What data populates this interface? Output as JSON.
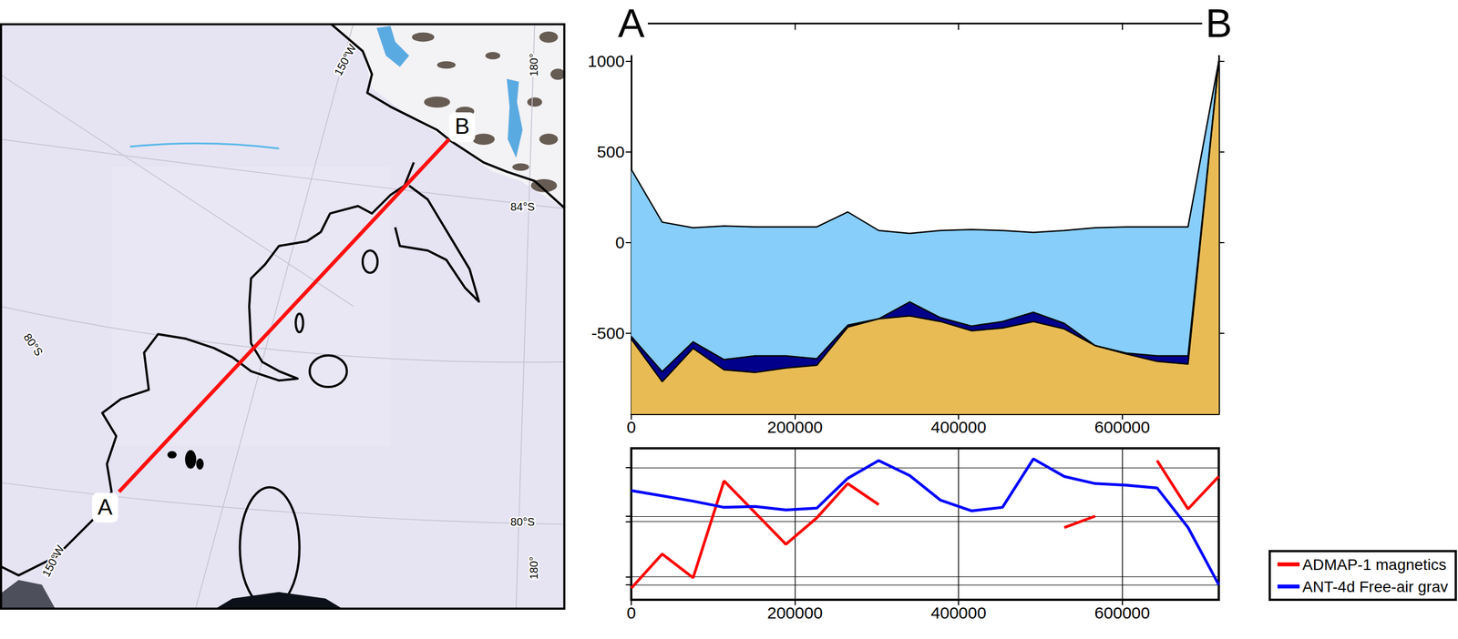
{
  "map": {
    "graticule_labels": [
      "150°W",
      "180°",
      "84°S",
      "80°S",
      "80°S",
      "150°W",
      "180°"
    ],
    "profile_labels": [
      "A",
      "B"
    ]
  },
  "chart_data": [
    {
      "type": "area",
      "x": [
        0,
        37800,
        75600,
        113400,
        151200,
        189000,
        226800,
        264600,
        302400,
        340200,
        378000,
        415800,
        453600,
        491400,
        529200,
        567000,
        604800,
        642600,
        680400,
        718000
      ],
      "xlim": [
        0,
        718000
      ],
      "xticks": [
        0,
        200000,
        400000,
        600000
      ],
      "ylim": [
        -945,
        1030
      ],
      "yticks": [
        -500,
        0,
        500,
        1000
      ],
      "series": [
        {
          "color": "#87cefa",
          "values": [
            404,
            113,
            82,
            92,
            87,
            87,
            87,
            169,
            67,
            51,
            67,
            72,
            67,
            56,
            67,
            82,
            87,
            87,
            87,
            1000
          ]
        },
        {
          "color": "#00008b",
          "values": [
            -517,
            -711,
            -547,
            -645,
            -624,
            -624,
            -640,
            -455,
            -420,
            -327,
            -414,
            -460,
            -435,
            -384,
            -445,
            -568,
            -609,
            -624,
            -624,
            1000
          ]
        },
        {
          "color": "#e8bb55",
          "values": [
            -532,
            -767,
            -583,
            -701,
            -716,
            -691,
            -676,
            -466,
            -420,
            -404,
            -435,
            -486,
            -471,
            -435,
            -476,
            -568,
            -614,
            -655,
            -670,
            1000
          ]
        }
      ]
    },
    {
      "type": "line",
      "x": [
        0,
        37800,
        75600,
        113400,
        151200,
        189000,
        226800,
        264600,
        302400,
        340200,
        378000,
        415800,
        453600,
        491400,
        529200,
        567000,
        604800,
        642600,
        680400,
        718000
      ],
      "xlim": [
        0,
        718000
      ],
      "xticks": [
        0,
        200000,
        400000,
        600000
      ],
      "ylim": [
        0,
        100
      ],
      "yticks": [
        9.9,
        15.1,
        51.7,
        55.2,
        87.2
      ],
      "tick_labels": "x",
      "grid": true,
      "legend": "lower right",
      "series": [
        {
          "name": "ADMAP-1 magnetics",
          "color": "#ff0000",
          "values": [
            7.6,
            30.2,
            14.5,
            78.5,
            57.6,
            36.6,
            54.1,
            76.7,
            62.8,
            null,
            null,
            null,
            null,
            null,
            47.7,
            55.2,
            null,
            91.9,
            59.9,
            81.4
          ]
        },
        {
          "name": "ANT-4d Free-air grav",
          "color": "#0000ff",
          "values": [
            72.1,
            68.6,
            65.1,
            61.0,
            61.6,
            59.3,
            60.5,
            80.2,
            91.9,
            82.0,
            65.7,
            58.7,
            61.0,
            93.0,
            81.4,
            76.7,
            75.6,
            73.8,
            47.7,
            9.9
          ]
        }
      ]
    }
  ]
}
